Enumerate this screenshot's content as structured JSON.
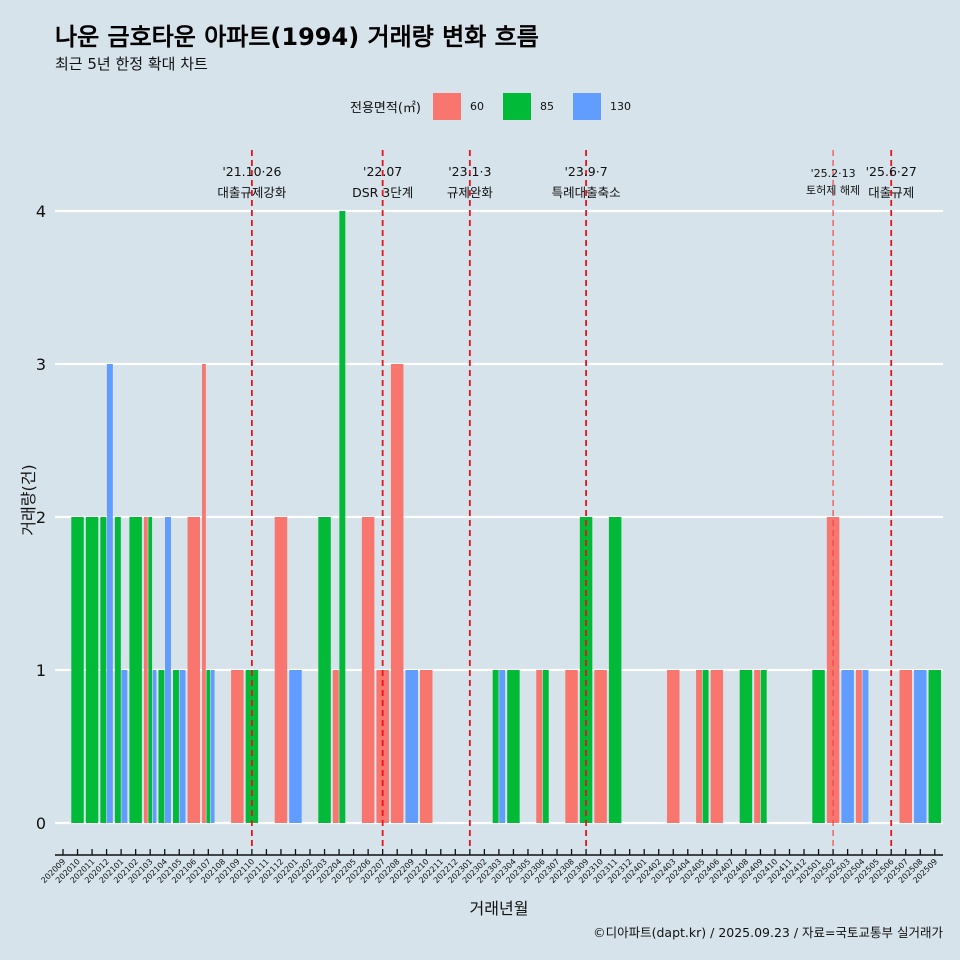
{
  "title": "나운 금호타운 아파트(1994) 거래량 변화 흐름",
  "subtitle": "최근 5년 한정 확대 차트",
  "caption": "©디아파트(dapt.kr) / 2025.09.23 / 자료=국토교통부 실거래가",
  "legend": {
    "title": "전용면적(㎡)",
    "items": [
      {
        "label": "60",
        "color": "#f8766d"
      },
      {
        "label": "85",
        "color": "#00ba38"
      },
      {
        "label": "130",
        "color": "#619cff"
      }
    ]
  },
  "chart_data": {
    "type": "bar",
    "xlabel": "거래년월",
    "ylabel": "거래량(건)",
    "ylim": [
      0,
      4
    ],
    "yticks": [
      "0",
      "1",
      "2",
      "3",
      "4"
    ],
    "grid": "horizontal",
    "legend_position": "top",
    "categories": [
      "202009",
      "202010",
      "202011",
      "202012",
      "202101",
      "202102",
      "202103",
      "202104",
      "202105",
      "202106",
      "202107",
      "202108",
      "202109",
      "202110",
      "202111",
      "202112",
      "202201",
      "202202",
      "202203",
      "202204",
      "202205",
      "202206",
      "202207",
      "202208",
      "202209",
      "202210",
      "202211",
      "202212",
      "202301",
      "202302",
      "202303",
      "202304",
      "202305",
      "202306",
      "202307",
      "202308",
      "202309",
      "202310",
      "202311",
      "202312",
      "202401",
      "202402",
      "202403",
      "202404",
      "202405",
      "202406",
      "202407",
      "202408",
      "202409",
      "202410",
      "202411",
      "202412",
      "202501",
      "202502",
      "202503",
      "202504",
      "202505",
      "202506",
      "202507",
      "202508",
      "202509"
    ],
    "series": [
      {
        "name": "60",
        "color": "#f8766d",
        "values": {
          "202103": 2,
          "202106": 2,
          "202107": 3,
          "202109": 1,
          "202112": 2,
          "202204": 1,
          "202206": 2,
          "202207": 1,
          "202208": 3,
          "202210": 1,
          "202306": 1,
          "202308": 1,
          "202310": 1,
          "202403": 1,
          "202405": 1,
          "202406": 1,
          "202409": 1,
          "202502": 2,
          "202504": 1,
          "202507": 1
        }
      },
      {
        "name": "85",
        "color": "#00ba38",
        "values": {
          "202010": 2,
          "202011": 2,
          "202012": 2,
          "202101": 2,
          "202102": 2,
          "202103": 2,
          "202104": 1,
          "202105": 1,
          "202107": 1,
          "202110": 1,
          "202203": 2,
          "202204": 4,
          "202303": 1,
          "202304": 1,
          "202306": 1,
          "202309": 2,
          "202311": 2,
          "202405": 1,
          "202408": 1,
          "202409": 1,
          "202501": 1,
          "202509": 1
        }
      },
      {
        "name": "130",
        "color": "#619cff",
        "values": {
          "202012": 3,
          "202101": 1,
          "202103": 1,
          "202104": 2,
          "202105": 1,
          "202107": 1,
          "202201": 1,
          "202209": 1,
          "202303": 1,
          "202503": 1,
          "202504": 1,
          "202508": 1
        }
      }
    ],
    "events": [
      {
        "month": "202110",
        "date": "'21.10·26",
        "label": "대출규제강화",
        "minor": false
      },
      {
        "month": "202207",
        "date": "'22.07",
        "label": "DSR 3단계",
        "minor": false
      },
      {
        "month": "202301",
        "date": "'23.1·3",
        "label": "규제완화",
        "minor": false
      },
      {
        "month": "202309",
        "date": "'23.9·7",
        "label": "특례대출축소",
        "minor": false
      },
      {
        "month": "202502",
        "date": "'25.2·13",
        "label": "토허제 해제",
        "minor": true
      },
      {
        "month": "202506",
        "date": "'25.6·27",
        "label": "대출규제",
        "minor": false
      }
    ]
  }
}
